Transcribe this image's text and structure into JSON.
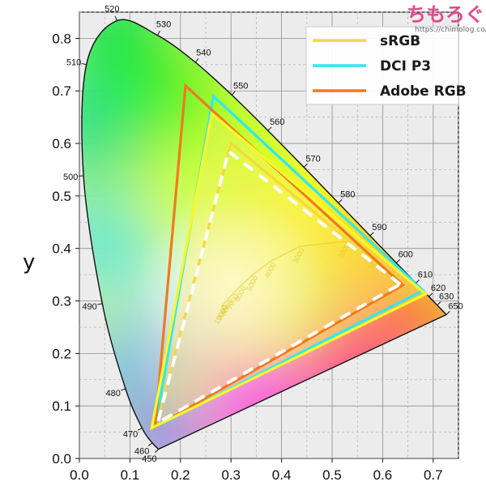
{
  "chart_data": {
    "type": "line",
    "title": "",
    "xlabel": "",
    "ylabel": "y",
    "xlim": [
      0,
      0.75
    ],
    "ylim": [
      0,
      0.85
    ],
    "xticks": [
      "0.0",
      "0.1",
      "0.2",
      "0.3",
      "0.4",
      "0.5",
      "0.6",
      "0.7"
    ],
    "yticks": [
      "0.0",
      "0.1",
      "0.2",
      "0.3",
      "0.4",
      "0.5",
      "0.6",
      "0.7",
      "0.8"
    ],
    "grid": true,
    "legend_position": "top-right",
    "spectral_locus": [
      {
        "nm": "450",
        "x": 0.1566,
        "y": 0.0177
      },
      {
        "nm": "460",
        "x": 0.144,
        "y": 0.0297
      },
      {
        "nm": "470",
        "x": 0.1241,
        "y": 0.0578
      },
      {
        "nm": "480",
        "x": 0.0913,
        "y": 0.1327
      },
      {
        "nm": "490",
        "x": 0.0454,
        "y": 0.295
      },
      {
        "nm": "500",
        "x": 0.0082,
        "y": 0.5384
      },
      {
        "nm": "510",
        "x": 0.0139,
        "y": 0.7502
      },
      {
        "nm": "520",
        "x": 0.0743,
        "y": 0.8338
      },
      {
        "nm": "530",
        "x": 0.1547,
        "y": 0.8059
      },
      {
        "nm": "540",
        "x": 0.2296,
        "y": 0.7543
      },
      {
        "nm": "550",
        "x": 0.3016,
        "y": 0.6923
      },
      {
        "nm": "560",
        "x": 0.3731,
        "y": 0.6245
      },
      {
        "nm": "570",
        "x": 0.4441,
        "y": 0.5547
      },
      {
        "nm": "580",
        "x": 0.5125,
        "y": 0.4866
      },
      {
        "nm": "590",
        "x": 0.5752,
        "y": 0.4242
      },
      {
        "nm": "600",
        "x": 0.627,
        "y": 0.3725
      },
      {
        "nm": "610",
        "x": 0.6658,
        "y": 0.334
      },
      {
        "nm": "620",
        "x": 0.6915,
        "y": 0.3083
      },
      {
        "nm": "630",
        "x": 0.7079,
        "y": 0.292
      },
      {
        "nm": "650",
        "x": 0.726,
        "y": 0.274
      }
    ],
    "series": [
      {
        "name": "sRGB",
        "color": "#f5d742",
        "points": [
          {
            "x": 0.64,
            "y": 0.33
          },
          {
            "x": 0.3,
            "y": 0.6
          },
          {
            "x": 0.15,
            "y": 0.06
          }
        ]
      },
      {
        "name": "DCI P3",
        "color": "#2ee8ef",
        "points": [
          {
            "x": 0.68,
            "y": 0.32
          },
          {
            "x": 0.265,
            "y": 0.69
          },
          {
            "x": 0.15,
            "y": 0.06
          }
        ]
      },
      {
        "name": "Adobe RGB",
        "color": "#f07a1e",
        "points": [
          {
            "x": 0.64,
            "y": 0.33
          },
          {
            "x": 0.21,
            "y": 0.71
          },
          {
            "x": 0.15,
            "y": 0.06
          }
        ]
      }
    ],
    "measured": [
      {
        "color": "#f8f82a",
        "points": [
          {
            "x": 0.685,
            "y": 0.313
          },
          {
            "x": 0.262,
            "y": 0.657
          },
          {
            "x": 0.143,
            "y": 0.058
          }
        ]
      },
      {
        "color": "#ffffff",
        "dashed": true,
        "points": [
          {
            "x": 0.635,
            "y": 0.332
          },
          {
            "x": 0.295,
            "y": 0.585
          },
          {
            "x": 0.155,
            "y": 0.068
          }
        ]
      }
    ],
    "planckian_labels": [
      "1000",
      "1500",
      "2000",
      "3000",
      "4000",
      "5000",
      "6000",
      "7000",
      "8000",
      "9000",
      "10000"
    ]
  },
  "watermark": {
    "title": "ちもろぐ",
    "url": "https://chimolog.co/"
  }
}
